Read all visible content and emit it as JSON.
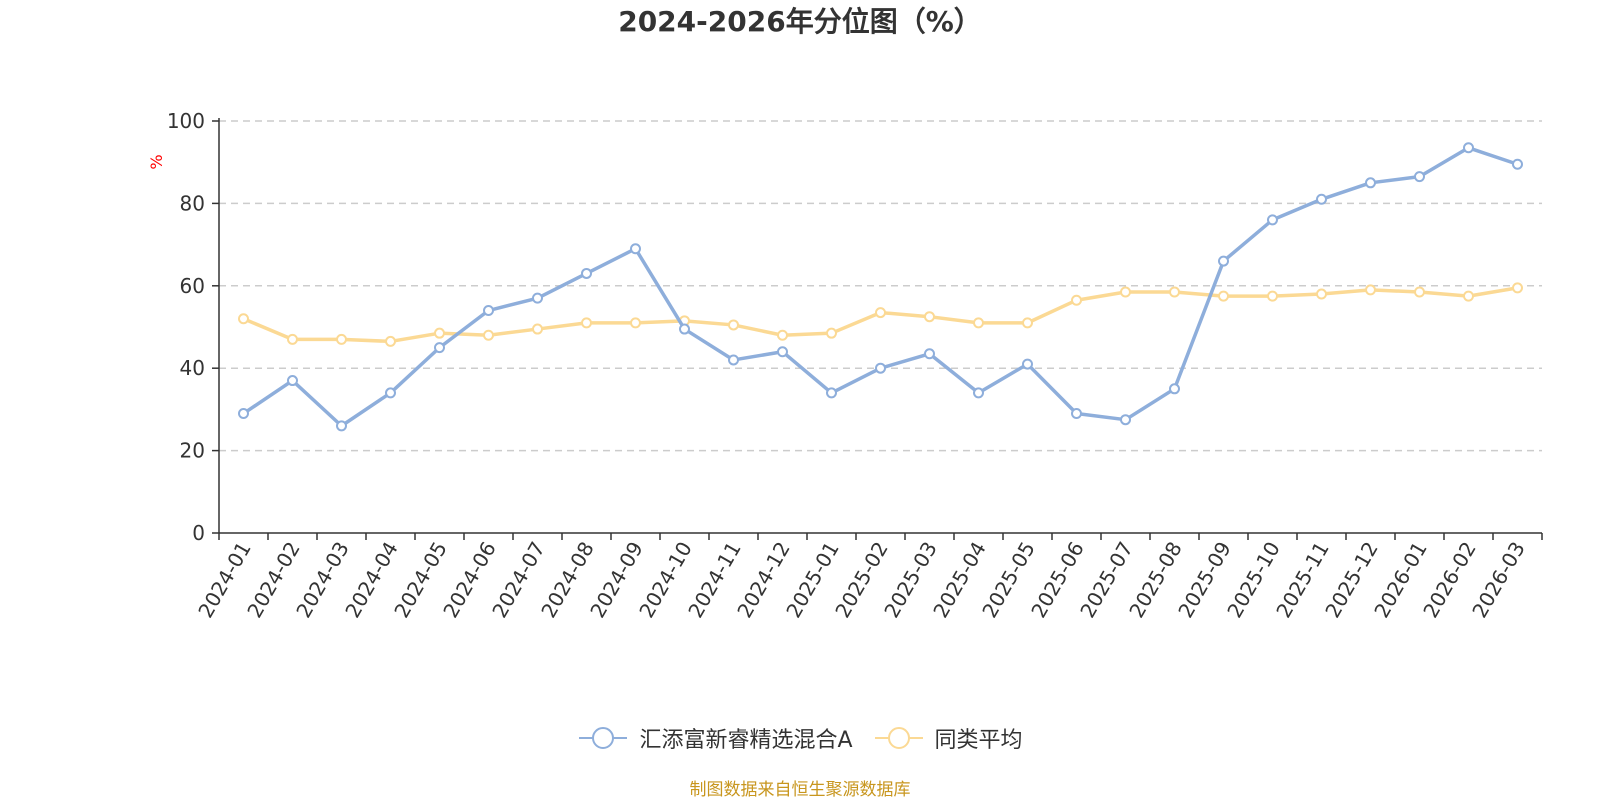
{
  "chart_data": {
    "type": "line",
    "title": "2024-2026年分位图（%）",
    "ylabel": "%",
    "xlabel": "",
    "ylim": [
      0,
      100
    ],
    "yticks": [
      0,
      20,
      40,
      60,
      80,
      100
    ],
    "grid": true,
    "legend_position": "bottom",
    "categories": [
      "2024-01",
      "2024-02",
      "2024-03",
      "2024-04",
      "2024-05",
      "2024-06",
      "2024-07",
      "2024-08",
      "2024-09",
      "2024-10",
      "2024-11",
      "2024-12",
      "2025-01",
      "2025-02",
      "2025-03",
      "2025-04",
      "2025-05",
      "2025-06",
      "2025-07",
      "2025-08",
      "2025-09",
      "2025-10",
      "2025-11",
      "2025-12",
      "2026-01",
      "2026-02",
      "2026-03"
    ],
    "series": [
      {
        "name": "汇添富新睿精选混合A",
        "color": "#8eaedb",
        "values": [
          29,
          37,
          26,
          34,
          45,
          54,
          57,
          63,
          69,
          49.5,
          42,
          44,
          34,
          40,
          43.5,
          34,
          41,
          29,
          27.5,
          35,
          66,
          76,
          81,
          85,
          86.5,
          93.5,
          89.5
        ]
      },
      {
        "name": "同类平均",
        "color": "#fbd994",
        "values": [
          52,
          47,
          47,
          46.5,
          48.5,
          48,
          49.5,
          51,
          51,
          51.5,
          50.5,
          48,
          48.5,
          53.5,
          52.5,
          51,
          51,
          56.5,
          58.5,
          58.5,
          57.5,
          57.5,
          58,
          59,
          58.5,
          57.5,
          59.5
        ]
      }
    ],
    "source_note": "制图数据来自恒生聚源数据库",
    "colors": {
      "axis": "#333333",
      "grid": "#cccccc",
      "ylabel": "#ff0000",
      "source": "#c8961e"
    }
  }
}
